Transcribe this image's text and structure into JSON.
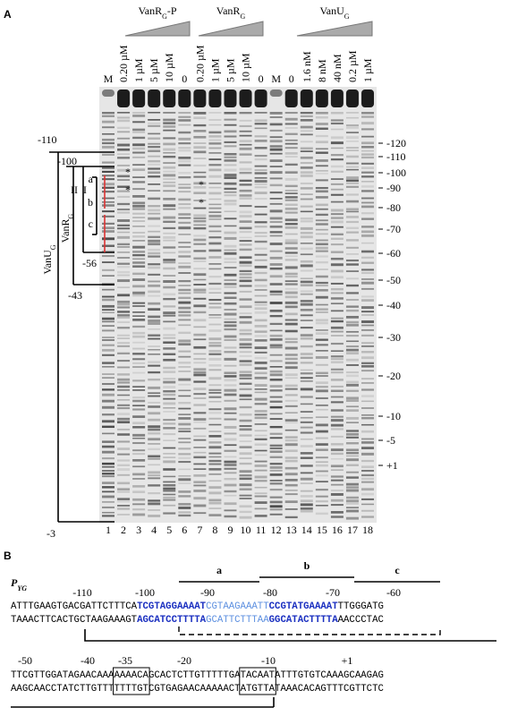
{
  "panel_a": {
    "label": "A",
    "groups": [
      {
        "name": "VanR",
        "sub": "G",
        "suffix": "-P"
      },
      {
        "name": "VanR",
        "sub": "G"
      },
      {
        "name": "VanU",
        "sub": "G"
      }
    ],
    "lanes": [
      "M",
      "0.20 µM",
      "1 µM",
      "5 µM",
      "10 µM",
      "0",
      "0.20 µM",
      "1 µM",
      "5 µM",
      "10 µM",
      "0",
      "M",
      "0",
      "1.6 nM",
      "8 nM",
      "40 nM",
      "0.2 µM",
      "1 µM"
    ],
    "lane_numbers": [
      "1",
      "2",
      "3",
      "4",
      "5",
      "6",
      "7",
      "8",
      "9",
      "10",
      "11",
      "12",
      "13",
      "14",
      "15",
      "16",
      "17",
      "18"
    ],
    "ruler": [
      "-120",
      "-110",
      "-100",
      "-90",
      "-80",
      "-70",
      "-60",
      "-50",
      "-40",
      "-30",
      "-20",
      "-10",
      "-5",
      "+1"
    ],
    "brackets": {
      "start_outer": "-110",
      "start_inner": "-100",
      "end_outer": "-3",
      "end_vanr": "-43",
      "end_ii": "-56",
      "vanu": {
        "name": "VanU",
        "sub": "G"
      },
      "vanr": {
        "name": "VanR",
        "sub": "G"
      },
      "ii": "II",
      "i": "I",
      "sites": [
        "a",
        "b",
        "c"
      ]
    },
    "asterisks": [
      "*",
      "*",
      "*",
      "*"
    ]
  },
  "panel_b": {
    "label": "B",
    "promoter": {
      "name": "P",
      "sub": "YG"
    },
    "sites": [
      "a",
      "b",
      "c"
    ],
    "row1_positions": [
      "-110",
      "-100",
      "-90",
      "-80",
      "-70",
      "-60"
    ],
    "row1_top": [
      "ATTTGAAGTGACGATTCTTTCA",
      "TCGTAGGAAAAT",
      "CGTAAGAAATT",
      "CCGTATGAAAAT",
      "TTGGGATG"
    ],
    "row1_bottom": [
      "TAAACTTCACTGCTAAGAAAGT",
      "AGCATCCTTTTA",
      "GCATTCTTTAA",
      "GGCATACTTTTA",
      "AACCCTAC"
    ],
    "row2_positions": [
      "-50",
      "-40",
      "-35",
      "-20",
      "-10",
      "+1"
    ],
    "row2_top": [
      "TTCGTTGGATAGAACAAA",
      "AAAACA",
      "GCACTCTTGTTTTTGA",
      "TACAAT",
      "ATTTGTGTCAAAGCAAGAG"
    ],
    "row2_bottom": [
      "AAGCAACCTATCTTGTTT",
      "TTTTGT",
      "CGTGAGAACAAAAACT",
      "ATGTTA",
      "TAAACACAGTTTCGTTCTC"
    ]
  }
}
